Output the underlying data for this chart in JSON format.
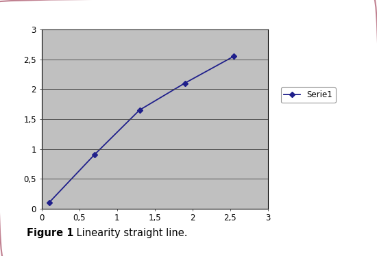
{
  "x": [
    0.1,
    0.7,
    1.3,
    1.9,
    2.55
  ],
  "y": [
    0.1,
    0.9,
    1.65,
    2.1,
    2.55
  ],
  "line_color": "#1F1F8B",
  "marker": "D",
  "marker_size": 4,
  "line_width": 1.3,
  "xlim": [
    0,
    3
  ],
  "ylim": [
    0,
    3
  ],
  "xticks": [
    0,
    0.5,
    1,
    1.5,
    2,
    2.5,
    3
  ],
  "yticks": [
    0,
    0.5,
    1,
    1.5,
    2,
    2.5,
    3
  ],
  "xtick_labels": [
    "0",
    "0,5",
    "1",
    "1,5",
    "2",
    "2,5",
    "3"
  ],
  "ytick_labels": [
    "0",
    "0,5",
    "1",
    "1,5",
    "2",
    "2,5",
    "3"
  ],
  "legend_label": "Serie1",
  "plot_bg_color": "#C0C0C0",
  "fig_bg_color": "#FFFFFF",
  "caption_bold": "Figure 1",
  "caption_normal": " Linearity straight line.",
  "caption_fontsize": 10.5,
  "tick_fontsize": 8.5,
  "legend_fontsize": 8.5,
  "grid_color": "#404040",
  "grid_linewidth": 0.6,
  "border_color": "#000000",
  "outer_border_color": "#C08090",
  "outer_border_lw": 1.5,
  "legend_edge_color": "#999999"
}
